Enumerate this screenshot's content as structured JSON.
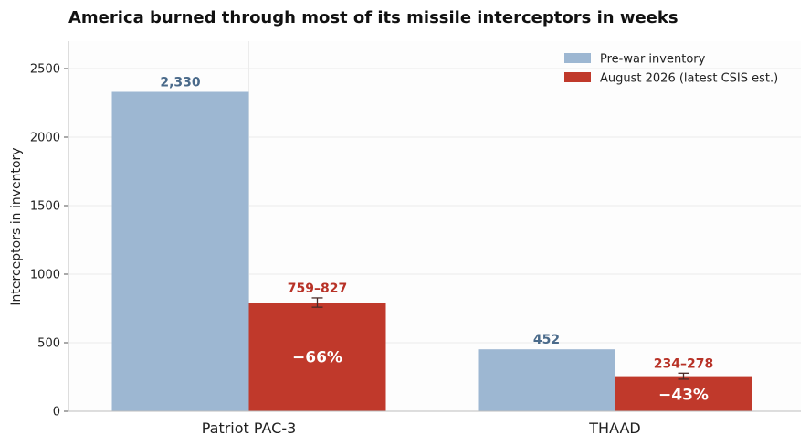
{
  "chart_data": {
    "type": "bar",
    "title": "America burned through most of its missile interceptors in weeks",
    "ylabel": "Interceptors in inventory",
    "xlabel": "",
    "ylim": [
      0,
      2700
    ],
    "yticks": [
      0,
      500,
      1000,
      1500,
      2000,
      2500
    ],
    "grid": true,
    "legend_position": "top-right",
    "categories": [
      "Patriot PAC-3",
      "THAAD"
    ],
    "series": [
      {
        "name": "Pre-war inventory",
        "color": "#9db7d2",
        "label_color": "#4a6a8a",
        "values": [
          2330,
          452
        ],
        "labels": [
          "2,330",
          "452"
        ]
      },
      {
        "name": "August 2026 (latest CSIS est.)",
        "color": "#c0392b",
        "label_color": "#b83227",
        "values": [
          793,
          256
        ],
        "error_low": [
          759,
          234
        ],
        "error_high": [
          827,
          278
        ],
        "labels": [
          "759–827",
          "234–278"
        ],
        "change_labels": [
          "−66%",
          "−43%"
        ]
      }
    ]
  }
}
